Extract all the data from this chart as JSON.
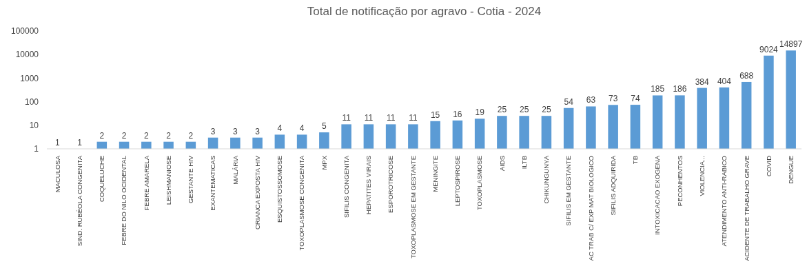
{
  "chart_data": {
    "type": "bar",
    "title": "Total de notificação por agravo - Cotia - 2024",
    "categories": [
      "MACULOSA",
      "SIND. RUBÉOLA CONGENITA",
      "COQUELUCHE",
      "FEBRE DO NILO OCIDENTAL",
      "FEBRE AMARELA",
      "LEISHMANIOSE",
      "GESTANTE HIV",
      "EXANTEMATICAS",
      "MALÁRIA",
      "CRIANCA EXPOSTA HIV",
      "ESQUISTOSSOMOSE",
      "TOXOPLASMOSE CONGENITA",
      "MPX",
      "SIFILIS CONGENITA",
      "HEPATITES VIRAIS",
      "ESPOROTRICOSE",
      "TOXOPLASMOSE EM GESTANTE",
      "MENINGITE",
      "LEPTOSPIROSE",
      "TOXOPLASMOSE",
      "AIDS",
      "ILTB",
      "CHIKUNGUNYA",
      "SIFILIS EM GESTANTE",
      "AC TRAB C/ EXP MAT BIOLOGICO",
      "SIFILIS ADQUIRIDA",
      "TB",
      "INTOXICACAO EXOGENA",
      "PECONHENTOS",
      "VIOLENCIA...",
      "ATENDIMENTO ANTI-RABICO",
      "ACIDENTE DE TRABALHO GRAVE",
      "COVID",
      "DENGUE"
    ],
    "values": [
      1,
      1,
      2,
      2,
      2,
      2,
      2,
      3,
      3,
      3,
      4,
      4,
      5,
      11,
      11,
      11,
      11,
      15,
      16,
      19,
      25,
      25,
      25,
      54,
      63,
      73,
      74,
      185,
      186,
      384,
      404,
      688,
      9024,
      14897
    ],
    "color": "#5b9bd5",
    "log": "y",
    "ylim": [
      1,
      100000
    ],
    "yticks": [
      1,
      10,
      100,
      1000,
      10000,
      100000
    ],
    "data_labels": true,
    "grid": false
  }
}
